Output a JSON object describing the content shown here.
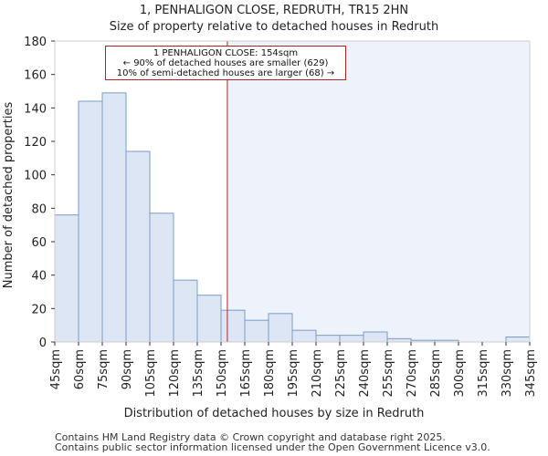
{
  "chart_data": {
    "type": "histogram",
    "title": "1, PENHALIGON CLOSE, REDRUTH, TR15 2HN",
    "subtitle": "Size of property relative to detached houses in Redruth",
    "xlabel": "Distribution of detached houses by size in Redruth",
    "ylabel": "Number of detached properties",
    "categories": [
      "45sqm",
      "60sqm",
      "75sqm",
      "90sqm",
      "105sqm",
      "120sqm",
      "135sqm",
      "150sqm",
      "165sqm",
      "180sqm",
      "195sqm",
      "210sqm",
      "225sqm",
      "240sqm",
      "255sqm",
      "270sqm",
      "285sqm",
      "300sqm",
      "315sqm",
      "330sqm",
      "345sqm"
    ],
    "bin_starts": [
      45,
      60,
      75,
      90,
      105,
      120,
      135,
      150,
      165,
      180,
      195,
      210,
      225,
      240,
      255,
      270,
      285,
      300,
      315,
      330,
      345
    ],
    "bin_width": 15,
    "values": [
      76,
      144,
      149,
      114,
      77,
      37,
      28,
      19,
      13,
      17,
      7,
      4,
      4,
      6,
      2,
      1,
      1,
      0,
      0,
      3
    ],
    "xlim": [
      45,
      345
    ],
    "ylim": [
      0,
      180
    ],
    "yticks": [
      0,
      20,
      40,
      60,
      80,
      100,
      120,
      140,
      160,
      180
    ],
    "marker": {
      "value": 154,
      "color": "#b22222"
    },
    "bar_fill": "#dce6f4",
    "bar_edge": "#7a9cc6",
    "highlight_fill": "#eef2fb",
    "annotation": {
      "line1": "1 PENHALIGON CLOSE: 154sqm",
      "line2": "← 90% of detached houses are smaller (629)",
      "line3": "10% of semi-detached houses are larger (68) →"
    }
  },
  "footer": {
    "line1": "Contains HM Land Registry data © Crown copyright and database right 2025.",
    "line2": "Contains public sector information licensed under the Open Government Licence v3.0."
  }
}
